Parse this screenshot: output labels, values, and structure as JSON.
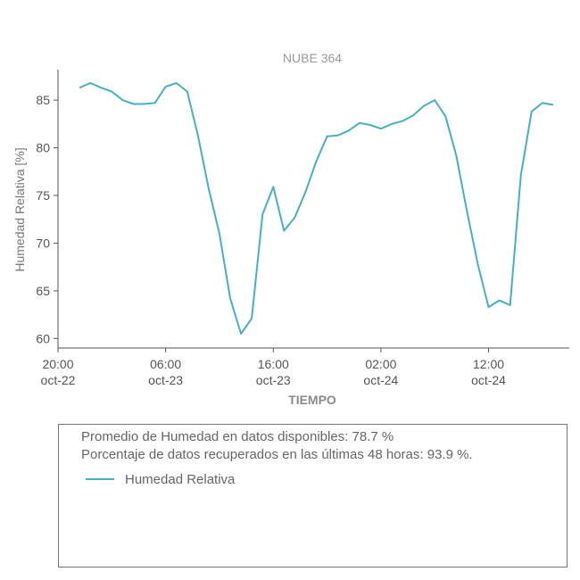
{
  "chart_data": {
    "type": "line",
    "title": "NUBE 364",
    "xlabel": "TIEMPO",
    "ylabel": "Humedad Relativa [%]",
    "ylim": [
      59,
      88.2
    ],
    "yticks": [
      60,
      65,
      70,
      75,
      80,
      85
    ],
    "xticks": [
      {
        "value": 20,
        "label1": "20:00",
        "label2": "oct-22"
      },
      {
        "value": 30,
        "label1": "06:00",
        "label2": "oct-23"
      },
      {
        "value": 40,
        "label1": "16:00",
        "label2": "oct-23"
      },
      {
        "value": 50,
        "label1": "02:00",
        "label2": "oct-24"
      },
      {
        "value": 60,
        "label1": "12:00",
        "label2": "oct-24"
      }
    ],
    "xlim": [
      20,
      67.5
    ],
    "grid": false,
    "series": [
      {
        "name": "Humedad Relativa",
        "color": "#4bafbf",
        "x": [
          22,
          23,
          24,
          25,
          26,
          27,
          28,
          29,
          30,
          31,
          32,
          33,
          34,
          35,
          36,
          37,
          38,
          39,
          40,
          41,
          42,
          43,
          44,
          45,
          46,
          47,
          48,
          49,
          50,
          51,
          52,
          53,
          54,
          55,
          56,
          57,
          58,
          59,
          60,
          61,
          62,
          63,
          64,
          65,
          66
        ],
        "y": [
          86.3,
          86.8,
          86.3,
          85.9,
          85.0,
          84.6,
          84.6,
          84.7,
          86.4,
          86.8,
          85.9,
          81.3,
          75.7,
          71.0,
          64.2,
          60.5,
          62.1,
          73.0,
          75.9,
          71.3,
          72.7,
          75.4,
          78.6,
          81.2,
          81.3,
          81.8,
          82.6,
          82.4,
          82.0,
          82.5,
          82.8,
          83.4,
          84.4,
          85.0,
          83.3,
          79.2,
          73.3,
          67.8,
          63.3,
          64.0,
          63.5,
          77.1,
          83.8,
          84.7,
          84.5
        ]
      }
    ]
  },
  "stats": {
    "line1": "Promedio de Humedad en datos disponibles: 78.7 %",
    "line2": "Porcentaje de datos recuperados en las últimas 48 horas: 93.9 %."
  }
}
